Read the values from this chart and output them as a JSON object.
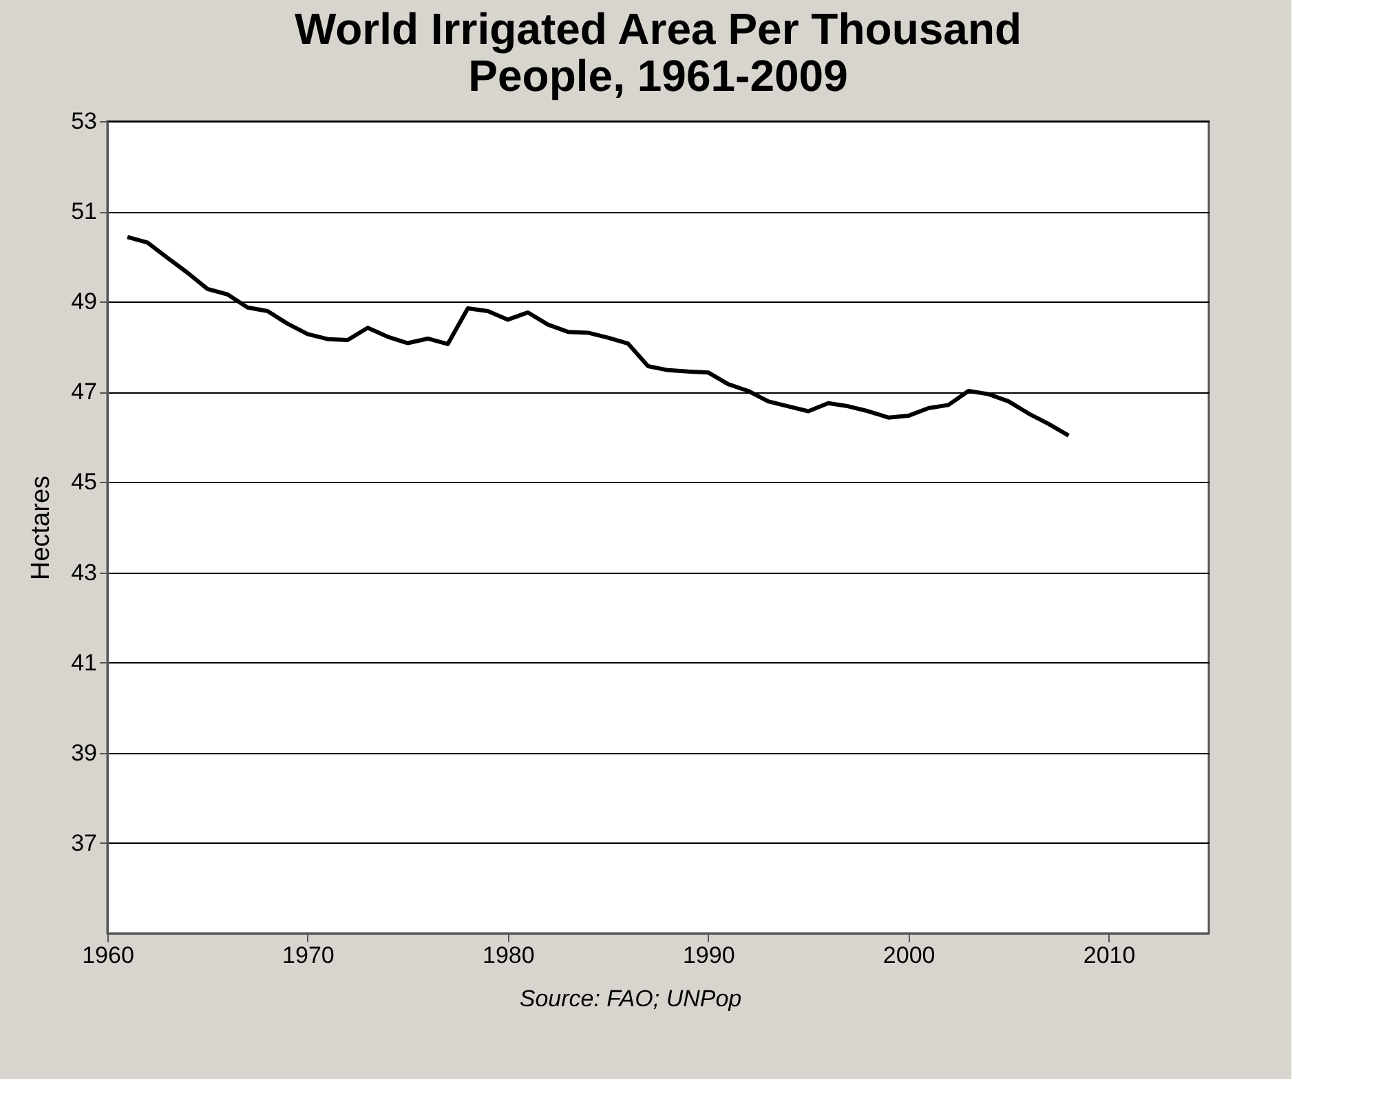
{
  "chart_data": {
    "type": "line",
    "title": "World Irrigated Area Per Thousand People, 1961-2009",
    "ylabel": "Hectares",
    "annotations": [
      "Source: FAO; UNPop"
    ],
    "x": [
      1961,
      1962,
      1963,
      1964,
      1965,
      1966,
      1967,
      1968,
      1969,
      1970,
      1971,
      1972,
      1973,
      1974,
      1975,
      1976,
      1977,
      1978,
      1979,
      1980,
      1981,
      1982,
      1983,
      1984,
      1985,
      1986,
      1987,
      1988,
      1989,
      1990,
      1991,
      1992,
      1993,
      1994,
      1995,
      1996,
      1997,
      1998,
      1999,
      2000,
      2001,
      2002,
      2003,
      2004,
      2005,
      2006,
      2007,
      2008
    ],
    "series": [
      {
        "color": "#000000",
        "values": [
          50.43,
          50.31,
          49.97,
          49.64,
          49.28,
          49.16,
          48.87,
          48.79,
          48.51,
          48.28,
          48.17,
          48.15,
          48.42,
          48.22,
          48.08,
          48.18,
          48.06,
          48.85,
          48.79,
          48.6,
          48.76,
          48.49,
          48.33,
          48.31,
          48.2,
          48.07,
          47.57,
          47.48,
          47.45,
          47.43,
          47.17,
          47.02,
          46.79,
          46.68,
          46.57,
          46.75,
          46.68,
          46.57,
          46.43,
          46.47,
          46.64,
          46.71,
          47.02,
          46.95,
          46.79,
          46.52,
          46.29,
          46.03
        ]
      }
    ],
    "xlim": [
      1960,
      2015
    ],
    "xticks": [
      1960,
      1970,
      1980,
      1990,
      2000,
      2010
    ],
    "ylim": [
      35,
      53
    ],
    "yticks": [
      37,
      39,
      41,
      43,
      45,
      47,
      49,
      51,
      53
    ],
    "grid": "y",
    "marker": "none",
    "line_style": "solid"
  }
}
